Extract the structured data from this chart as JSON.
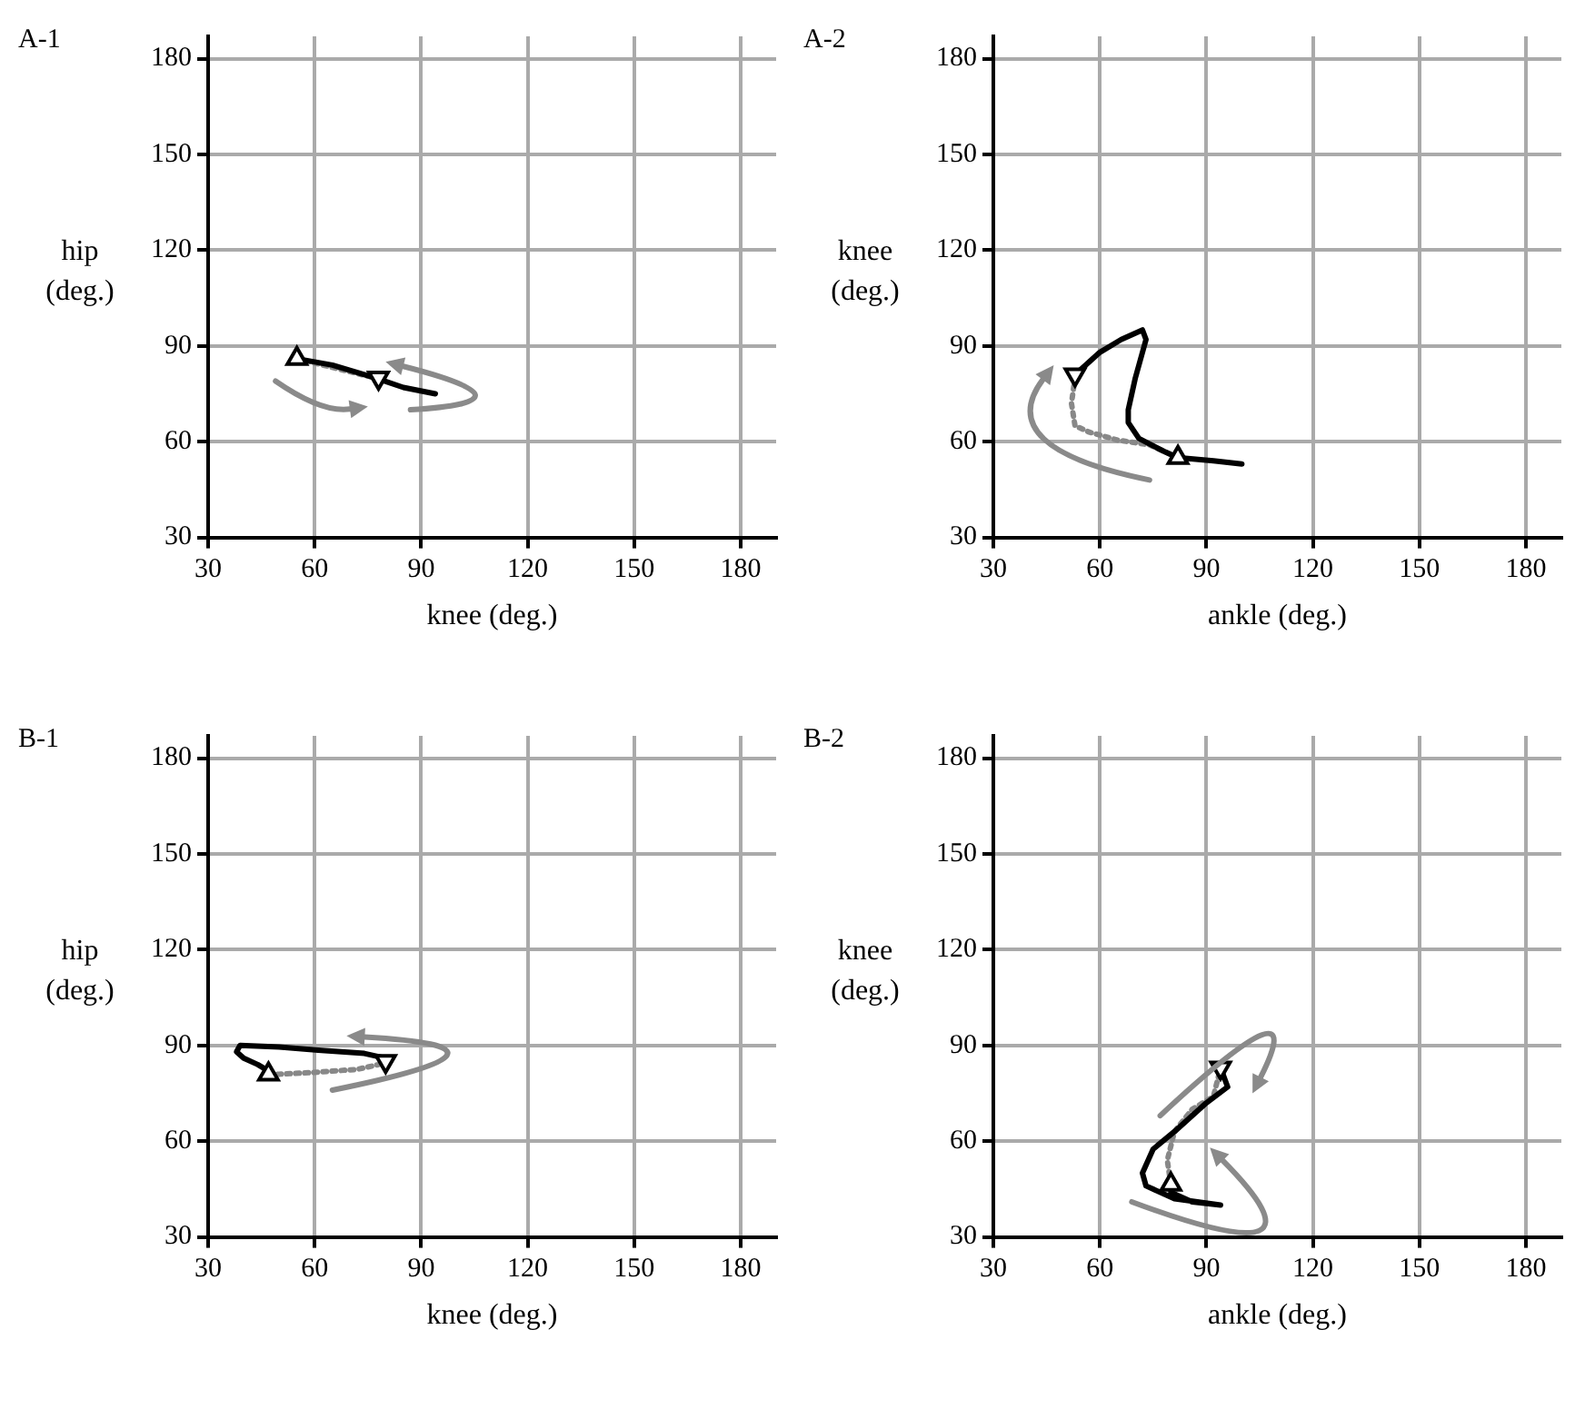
{
  "chart_data": [
    {
      "type": "line",
      "title": "A-1",
      "xlabel": "knee (deg.)",
      "ylabel": "hip (deg.)",
      "xlim": [
        30,
        190
      ],
      "ylim": [
        30,
        187
      ],
      "xticks": [
        30,
        60,
        90,
        120,
        150,
        180
      ],
      "yticks": [
        30,
        60,
        90,
        120,
        150,
        180
      ],
      "grid": true,
      "series": [
        {
          "color": "#000000",
          "marker": "none",
          "x": [
            55,
            65,
            77,
            85,
            94
          ],
          "values": [
            86,
            84,
            80,
            77,
            75
          ]
        },
        {
          "color": "#888888",
          "marker": "none",
          "line_style": "dotted",
          "x": [
            55,
            66,
            77
          ],
          "values": [
            86,
            83,
            80
          ]
        },
        {
          "type": "scatter",
          "color": "#000000",
          "marker": "triangle",
          "x": [
            55
          ],
          "values": [
            86
          ]
        },
        {
          "type": "scatter",
          "color": "#000000",
          "marker": "triangle",
          "x": [
            78
          ],
          "values": [
            80
          ]
        }
      ]
    },
    {
      "type": "line",
      "title": "A-2",
      "xlabel": "ankle (deg.)",
      "ylabel": "knee (deg.)",
      "xlim": [
        30,
        190
      ],
      "ylim": [
        30,
        187
      ],
      "xticks": [
        30,
        60,
        90,
        120,
        150,
        180
      ],
      "yticks": [
        30,
        60,
        90,
        120,
        150,
        180
      ],
      "grid": true,
      "series": [
        {
          "color": "#000000",
          "marker": "none",
          "x": [
            53,
            60,
            66,
            72,
            73,
            70,
            68,
            68,
            71,
            78,
            82,
            92,
            100
          ],
          "values": [
            81,
            88,
            92,
            95,
            92,
            80,
            70,
            66,
            61,
            57,
            55,
            54,
            53
          ]
        },
        {
          "color": "#888888",
          "marker": "none",
          "line_style": "dotted",
          "x": [
            82,
            74,
            65,
            57,
            53,
            52,
            53
          ],
          "values": [
            55,
            59,
            60.5,
            63,
            65,
            72,
            80
          ]
        },
        {
          "type": "scatter",
          "color": "#000000",
          "marker": "triangle",
          "x": [
            82
          ],
          "values": [
            55
          ]
        },
        {
          "type": "scatter",
          "color": "#000000",
          "marker": "triangle",
          "x": [
            53
          ],
          "values": [
            81
          ]
        }
      ]
    },
    {
      "type": "line",
      "title": "B-1",
      "xlabel": "knee (deg.)",
      "ylabel": "hip (deg.)",
      "xlim": [
        30,
        190
      ],
      "ylim": [
        30,
        187
      ],
      "xticks": [
        30,
        60,
        90,
        120,
        150,
        180
      ],
      "yticks": [
        30,
        60,
        90,
        120,
        150,
        180
      ],
      "grid": true,
      "series": [
        {
          "color": "#000000",
          "marker": "none",
          "x": [
            80,
            74,
            61,
            50,
            39,
            38,
            40,
            44,
            47
          ],
          "values": [
            86,
            87.5,
            88.5,
            89.5,
            90,
            88,
            86,
            84,
            82
          ]
        },
        {
          "color": "#888888",
          "marker": "none",
          "line_style": "dotted",
          "x": [
            47,
            50,
            59,
            72,
            78,
            80
          ],
          "values": [
            81,
            81,
            81.5,
            82.5,
            84,
            85
          ]
        },
        {
          "type": "scatter",
          "color": "#000000",
          "marker": "triangle",
          "x": [
            47
          ],
          "values": [
            81
          ]
        },
        {
          "type": "scatter",
          "color": "#000000",
          "marker": "triangle",
          "x": [
            80
          ],
          "values": [
            85
          ]
        }
      ]
    },
    {
      "type": "line",
      "title": "B-2",
      "xlabel": "ankle (deg.)",
      "ylabel": "knee (deg.)",
      "xlim": [
        30,
        190
      ],
      "ylim": [
        30,
        187
      ],
      "xticks": [
        30,
        60,
        90,
        120,
        150,
        180
      ],
      "yticks": [
        30,
        60,
        90,
        120,
        150,
        180
      ],
      "grid": true,
      "series": [
        {
          "color": "#000000",
          "marker": "none",
          "x": [
            94,
            96,
            90,
            81,
            75,
            72,
            73,
            81,
            94,
            86,
            80,
            80
          ],
          "values": [
            83,
            77,
            72,
            63,
            57.5,
            50,
            46,
            42,
            40,
            41,
            44,
            46.5
          ]
        },
        {
          "color": "#888888",
          "marker": "none",
          "line_style": "dotted",
          "x": [
            80,
            79,
            81,
            86,
            92,
            94
          ],
          "values": [
            46.5,
            54,
            63,
            70,
            74,
            83
          ]
        },
        {
          "type": "scatter",
          "color": "#000000",
          "marker": "triangle",
          "x": [
            80
          ],
          "values": [
            46.5
          ]
        },
        {
          "type": "scatter",
          "color": "#000000",
          "marker": "triangle",
          "x": [
            94
          ],
          "values": [
            83
          ]
        }
      ]
    }
  ]
}
